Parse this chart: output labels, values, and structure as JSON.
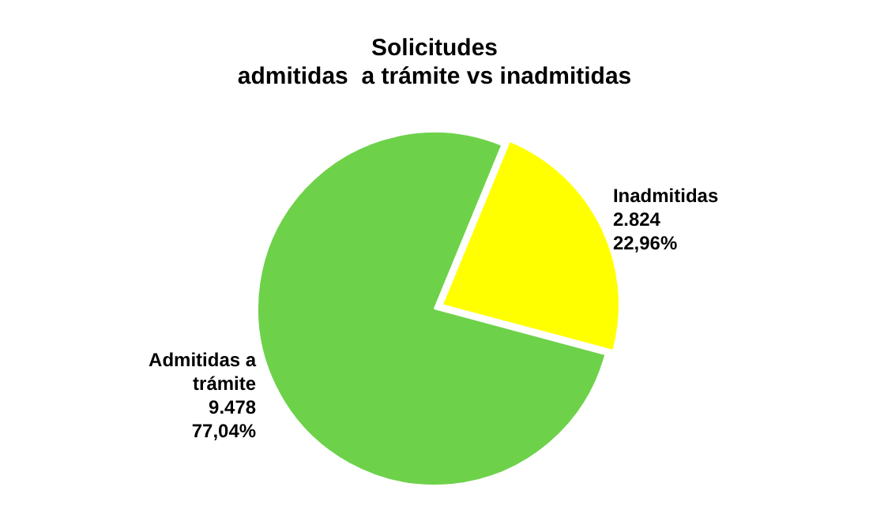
{
  "chart_data": {
    "type": "pie",
    "title": "Solicitudes\nadmitidas  a trámite vs inadmitidas",
    "categories": [
      "Admitidas a\ntrámite",
      "Inadmitidas"
    ],
    "values": [
      9478,
      2824
    ],
    "value_labels": [
      "9.478\n77,04%",
      "2.824\n22,96%"
    ],
    "colors": [
      "#6dd24a",
      "#ffff00"
    ],
    "legend": false
  }
}
